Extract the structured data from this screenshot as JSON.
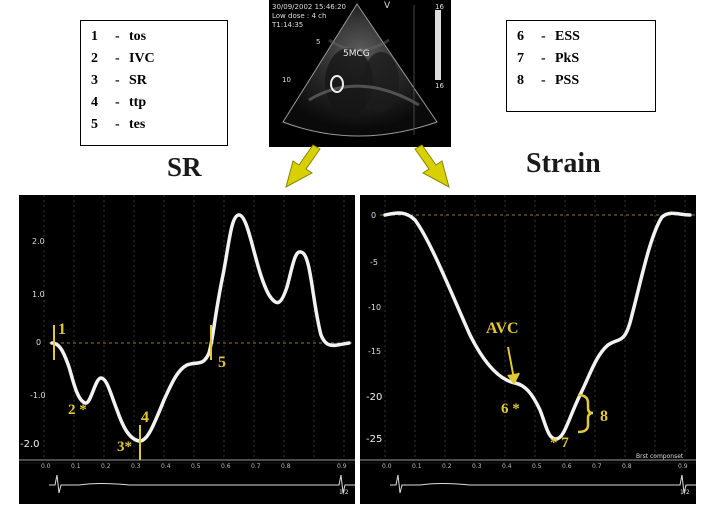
{
  "legend_left": [
    {
      "num": "1",
      "dash": "-",
      "label": "tos"
    },
    {
      "num": "2",
      "dash": "-",
      "label": "IVC"
    },
    {
      "num": "3",
      "dash": "-",
      "label": "SR"
    },
    {
      "num": "4",
      "dash": "-",
      "label": "ttp"
    },
    {
      "num": "5",
      "dash": "-",
      "label": "tes"
    }
  ],
  "legend_right": [
    {
      "num": "6",
      "dash": "-",
      "label": "ESS"
    },
    {
      "num": "7",
      "dash": "-",
      "label": "PkS"
    },
    {
      "num": "8",
      "dash": "-",
      "label": "PSS"
    }
  ],
  "titles": {
    "sr": "SR",
    "strain": "Strain"
  },
  "echo": {
    "date_time": "30/09/2002 15:46:20",
    "mode": "Low dose : 4 ch",
    "time": "T1:14:35",
    "marker_v": "V",
    "label_center": "5MCG",
    "scale_top": "16",
    "scale_bottom": "16",
    "depth_5": "5",
    "depth_10": "10"
  },
  "sr_panel": {
    "y_ticks": [
      "2.0",
      "1.0",
      "0",
      "-1.0",
      "-2.0"
    ],
    "x_ticks": [
      "0.0",
      "0.1",
      "0.2",
      "0.3",
      "0.4",
      "0.5",
      "0.6",
      "0.7",
      "0.8",
      "0.9"
    ],
    "annotations": {
      "a1": "1",
      "a2": "2 *",
      "a3": "3*",
      "a4": "4",
      "a5": "5"
    },
    "ecg_marker": "1/2"
  },
  "strain_panel": {
    "y_ticks": [
      "0",
      "-5",
      "-10",
      "-15",
      "-20",
      "-25"
    ],
    "x_ticks": [
      "0.0",
      "0.1",
      "0.2",
      "0.3",
      "0.4",
      "0.5",
      "0.6",
      "0.7",
      "0.8",
      "0.9"
    ],
    "annotations": {
      "avc": "AVC",
      "a6": "6 *",
      "a7": "* 7",
      "a8": "8"
    },
    "info_text": "Brst componset",
    "ecg_marker": "1/2"
  },
  "colors": {
    "annotation": "#e2c832",
    "trace": "#f2f2f2",
    "panel_bg": "#000000",
    "arrow": "#d8d000"
  }
}
